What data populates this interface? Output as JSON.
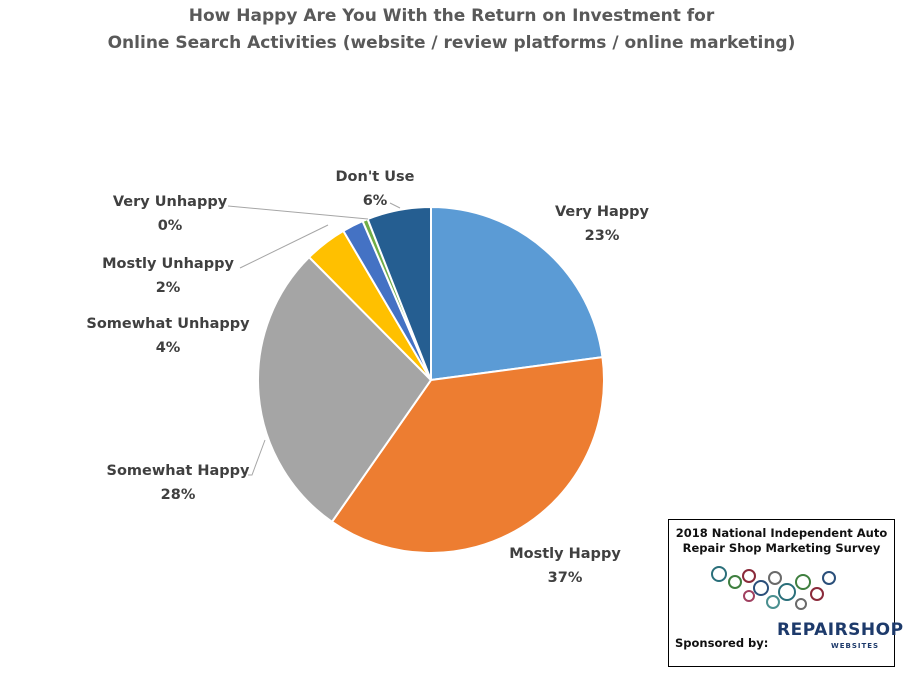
{
  "chart_data": {
    "type": "pie",
    "title_line1": "How Happy Are You With the Return on Investment for",
    "title_line2": "Online Search Activities (website / review platforms / online marketing)",
    "slices": [
      {
        "label": "Very Happy",
        "pct_label": "23%",
        "value": 23,
        "color": "#5B9BD5"
      },
      {
        "label": "Mostly Happy",
        "pct_label": "37%",
        "value": 37,
        "color": "#ED7D31"
      },
      {
        "label": "Somewhat Happy",
        "pct_label": "28%",
        "value": 28,
        "color": "#A5A5A5"
      },
      {
        "label": "Somewhat Unhappy",
        "pct_label": "4%",
        "value": 4,
        "color": "#FFC000"
      },
      {
        "label": "Mostly Unhappy",
        "pct_label": "2%",
        "value": 2,
        "color": "#4472C4"
      },
      {
        "label": "Very Unhappy",
        "pct_label": "0%",
        "value": 0.5,
        "color": "#70AD47"
      },
      {
        "label": "Don't Use",
        "pct_label": "6%",
        "value": 6,
        "color": "#255E91"
      }
    ]
  },
  "badge": {
    "title_line1": "2018 National Independent Auto",
    "title_line2": "Repair Shop Marketing Survey",
    "sponsor": "Sponsored by:",
    "brand": "REPAIRSHOP",
    "brand_sub": "WEBSITES"
  }
}
